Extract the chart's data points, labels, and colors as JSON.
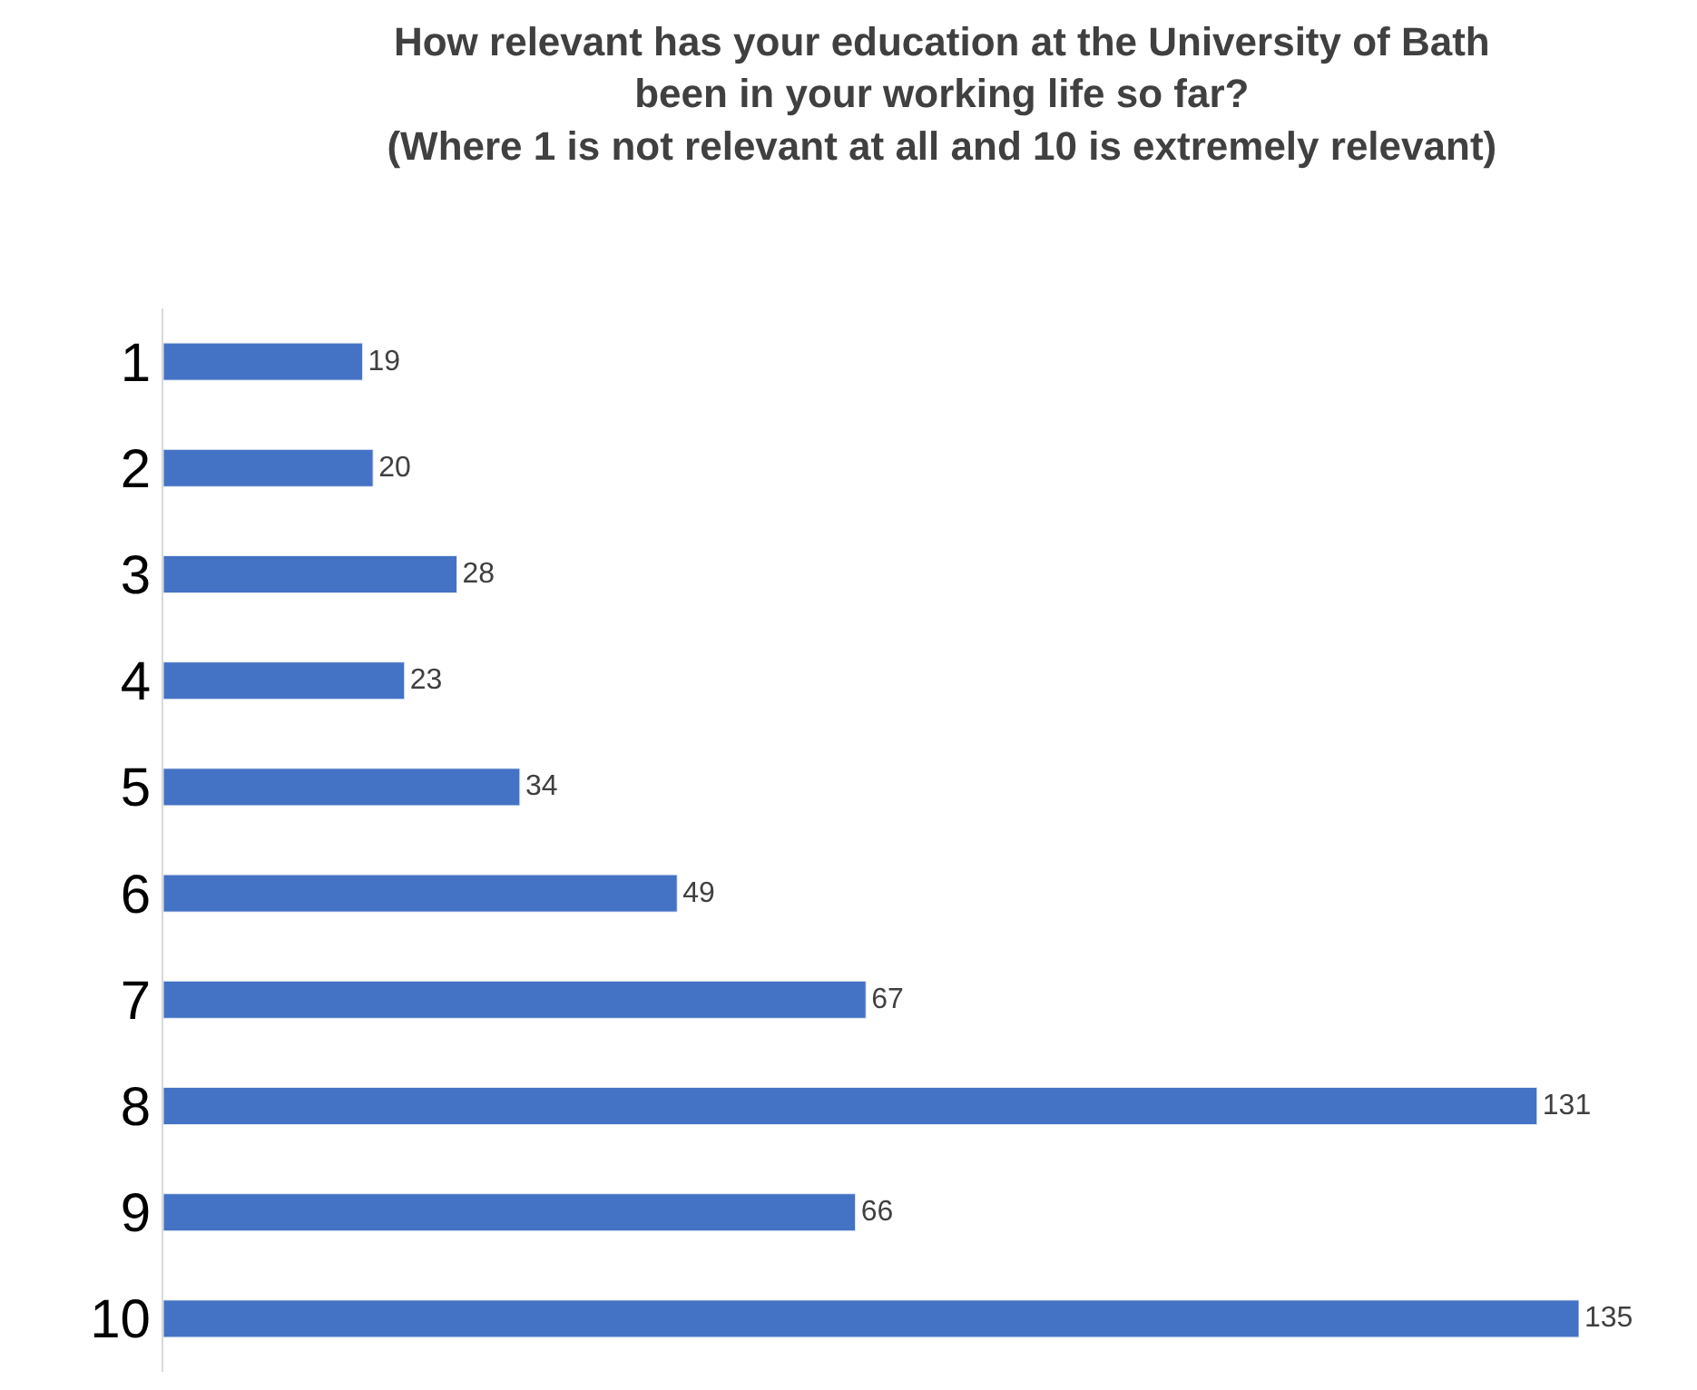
{
  "chart_data": {
    "type": "bar",
    "orientation": "horizontal",
    "title": "How relevant has your education at the University of Bath\nbeen in your working life so far?\n(Where 1 is not relevant at all and 10 is extremely relevant)",
    "categories": [
      "1",
      "2",
      "3",
      "4",
      "5",
      "6",
      "7",
      "8",
      "9",
      "10"
    ],
    "values": [
      19,
      20,
      28,
      23,
      34,
      49,
      67,
      131,
      66,
      135
    ],
    "color": "#4472c4",
    "data_labels": true
  }
}
